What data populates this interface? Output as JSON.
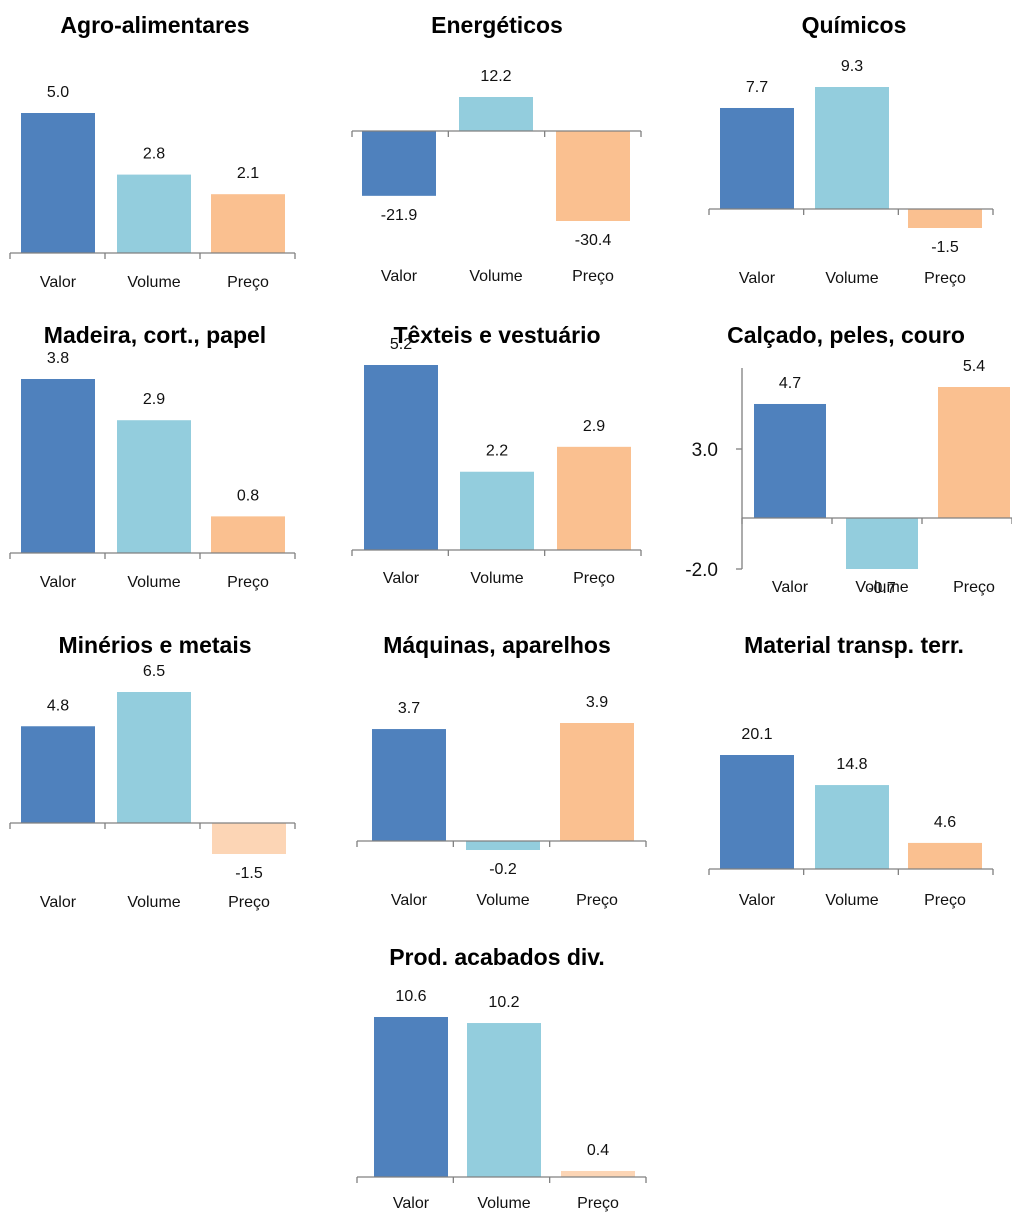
{
  "chart_data": [
    {
      "type": "bar",
      "title": "Agro-alimentares",
      "categories": [
        "Valor",
        "Volume",
        "Preço"
      ],
      "values": [
        5.0,
        2.8,
        2.1
      ],
      "value_labels": [
        "5.0",
        "2.8",
        "2.1"
      ],
      "colors": [
        "#4F81BD",
        "#93CDDD",
        "#FAC090"
      ],
      "ylim": [
        0,
        5.0
      ]
    },
    {
      "type": "bar",
      "title": "Energéticos",
      "categories": [
        "Valor",
        "Volume",
        "Preço"
      ],
      "values": [
        -21.9,
        12.2,
        -30.4
      ],
      "value_labels": [
        "-21.9",
        "12.2",
        "-30.4"
      ],
      "colors": [
        "#4F81BD",
        "#93CDDD",
        "#FAC090"
      ],
      "ylim": [
        -30.4,
        12.2
      ]
    },
    {
      "type": "bar",
      "title": "Químicos",
      "categories": [
        "Valor",
        "Volume",
        "Preço"
      ],
      "values": [
        7.7,
        9.3,
        -1.5
      ],
      "value_labels": [
        "7.7",
        "9.3",
        "-1.5"
      ],
      "colors": [
        "#4F81BD",
        "#93CDDD",
        "#FAC090"
      ],
      "ylim": [
        -1.5,
        9.3
      ]
    },
    {
      "type": "bar",
      "title": "Madeira, cort., papel",
      "categories": [
        "Valor",
        "Volume",
        "Preço"
      ],
      "values": [
        3.8,
        2.9,
        0.8
      ],
      "value_labels": [
        "3.8",
        "2.9",
        "0.8"
      ],
      "colors": [
        "#4F81BD",
        "#93CDDD",
        "#FAC090"
      ],
      "ylim": [
        0,
        3.8
      ]
    },
    {
      "type": "bar",
      "title": "Têxteis e vestuário",
      "categories": [
        "Valor",
        "Volume",
        "Preço"
      ],
      "values": [
        5.2,
        2.2,
        2.9
      ],
      "value_labels": [
        "5.2",
        "2.2",
        "2.9"
      ],
      "colors": [
        "#4F81BD",
        "#93CDDD",
        "#FAC090"
      ],
      "ylim": [
        0,
        5.2
      ]
    },
    {
      "type": "bar",
      "title": "Calçado, peles, couro",
      "categories": [
        "Valor",
        "Volume",
        "Preço"
      ],
      "values": [
        4.7,
        -0.7,
        5.4
      ],
      "value_labels": [
        "4.7",
        "-0.7",
        "5.4"
      ],
      "colors": [
        "#4F81BD",
        "#93CDDD",
        "#FAC090"
      ],
      "ylim": [
        -2.0,
        5.4
      ],
      "yticks": [
        3.0,
        -2.0
      ],
      "ytick_labels": [
        "3.0",
        "-2.0"
      ],
      "show_y_axis": true
    },
    {
      "type": "bar",
      "title": "Minérios e metais",
      "categories": [
        "Valor",
        "Volume",
        "Preço"
      ],
      "values": [
        4.8,
        6.5,
        -1.5
      ],
      "value_labels": [
        "4.8",
        "6.5",
        "-1.5"
      ],
      "colors": [
        "#4F81BD",
        "#93CDDD",
        "#FCD5B5"
      ],
      "ylim": [
        -1.5,
        6.5
      ]
    },
    {
      "type": "bar",
      "title": "Máquinas, aparelhos",
      "categories": [
        "Valor",
        "Volume",
        "Preço"
      ],
      "values": [
        3.7,
        -0.2,
        3.9
      ],
      "value_labels": [
        "3.7",
        "-0.2",
        "3.9"
      ],
      "colors": [
        "#4F81BD",
        "#93CDDD",
        "#FAC090"
      ],
      "ylim": [
        -0.2,
        3.9
      ]
    },
    {
      "type": "bar",
      "title": "Material transp. terr.",
      "categories": [
        "Valor",
        "Volume",
        "Preço"
      ],
      "values": [
        20.1,
        14.8,
        4.6
      ],
      "value_labels": [
        "20.1",
        "14.8",
        "4.6"
      ],
      "colors": [
        "#4F81BD",
        "#93CDDD",
        "#FAC090"
      ],
      "ylim": [
        0,
        20.1
      ]
    },
    {
      "type": "bar",
      "title": "Prod. acabados div.",
      "categories": [
        "Valor",
        "Volume",
        "Preço"
      ],
      "values": [
        10.6,
        10.2,
        0.4
      ],
      "value_labels": [
        "10.6",
        "10.2",
        "0.4"
      ],
      "colors": [
        "#4F81BD",
        "#93CDDD",
        "#FCD5B5"
      ],
      "ylim": [
        0,
        10.6
      ]
    }
  ]
}
